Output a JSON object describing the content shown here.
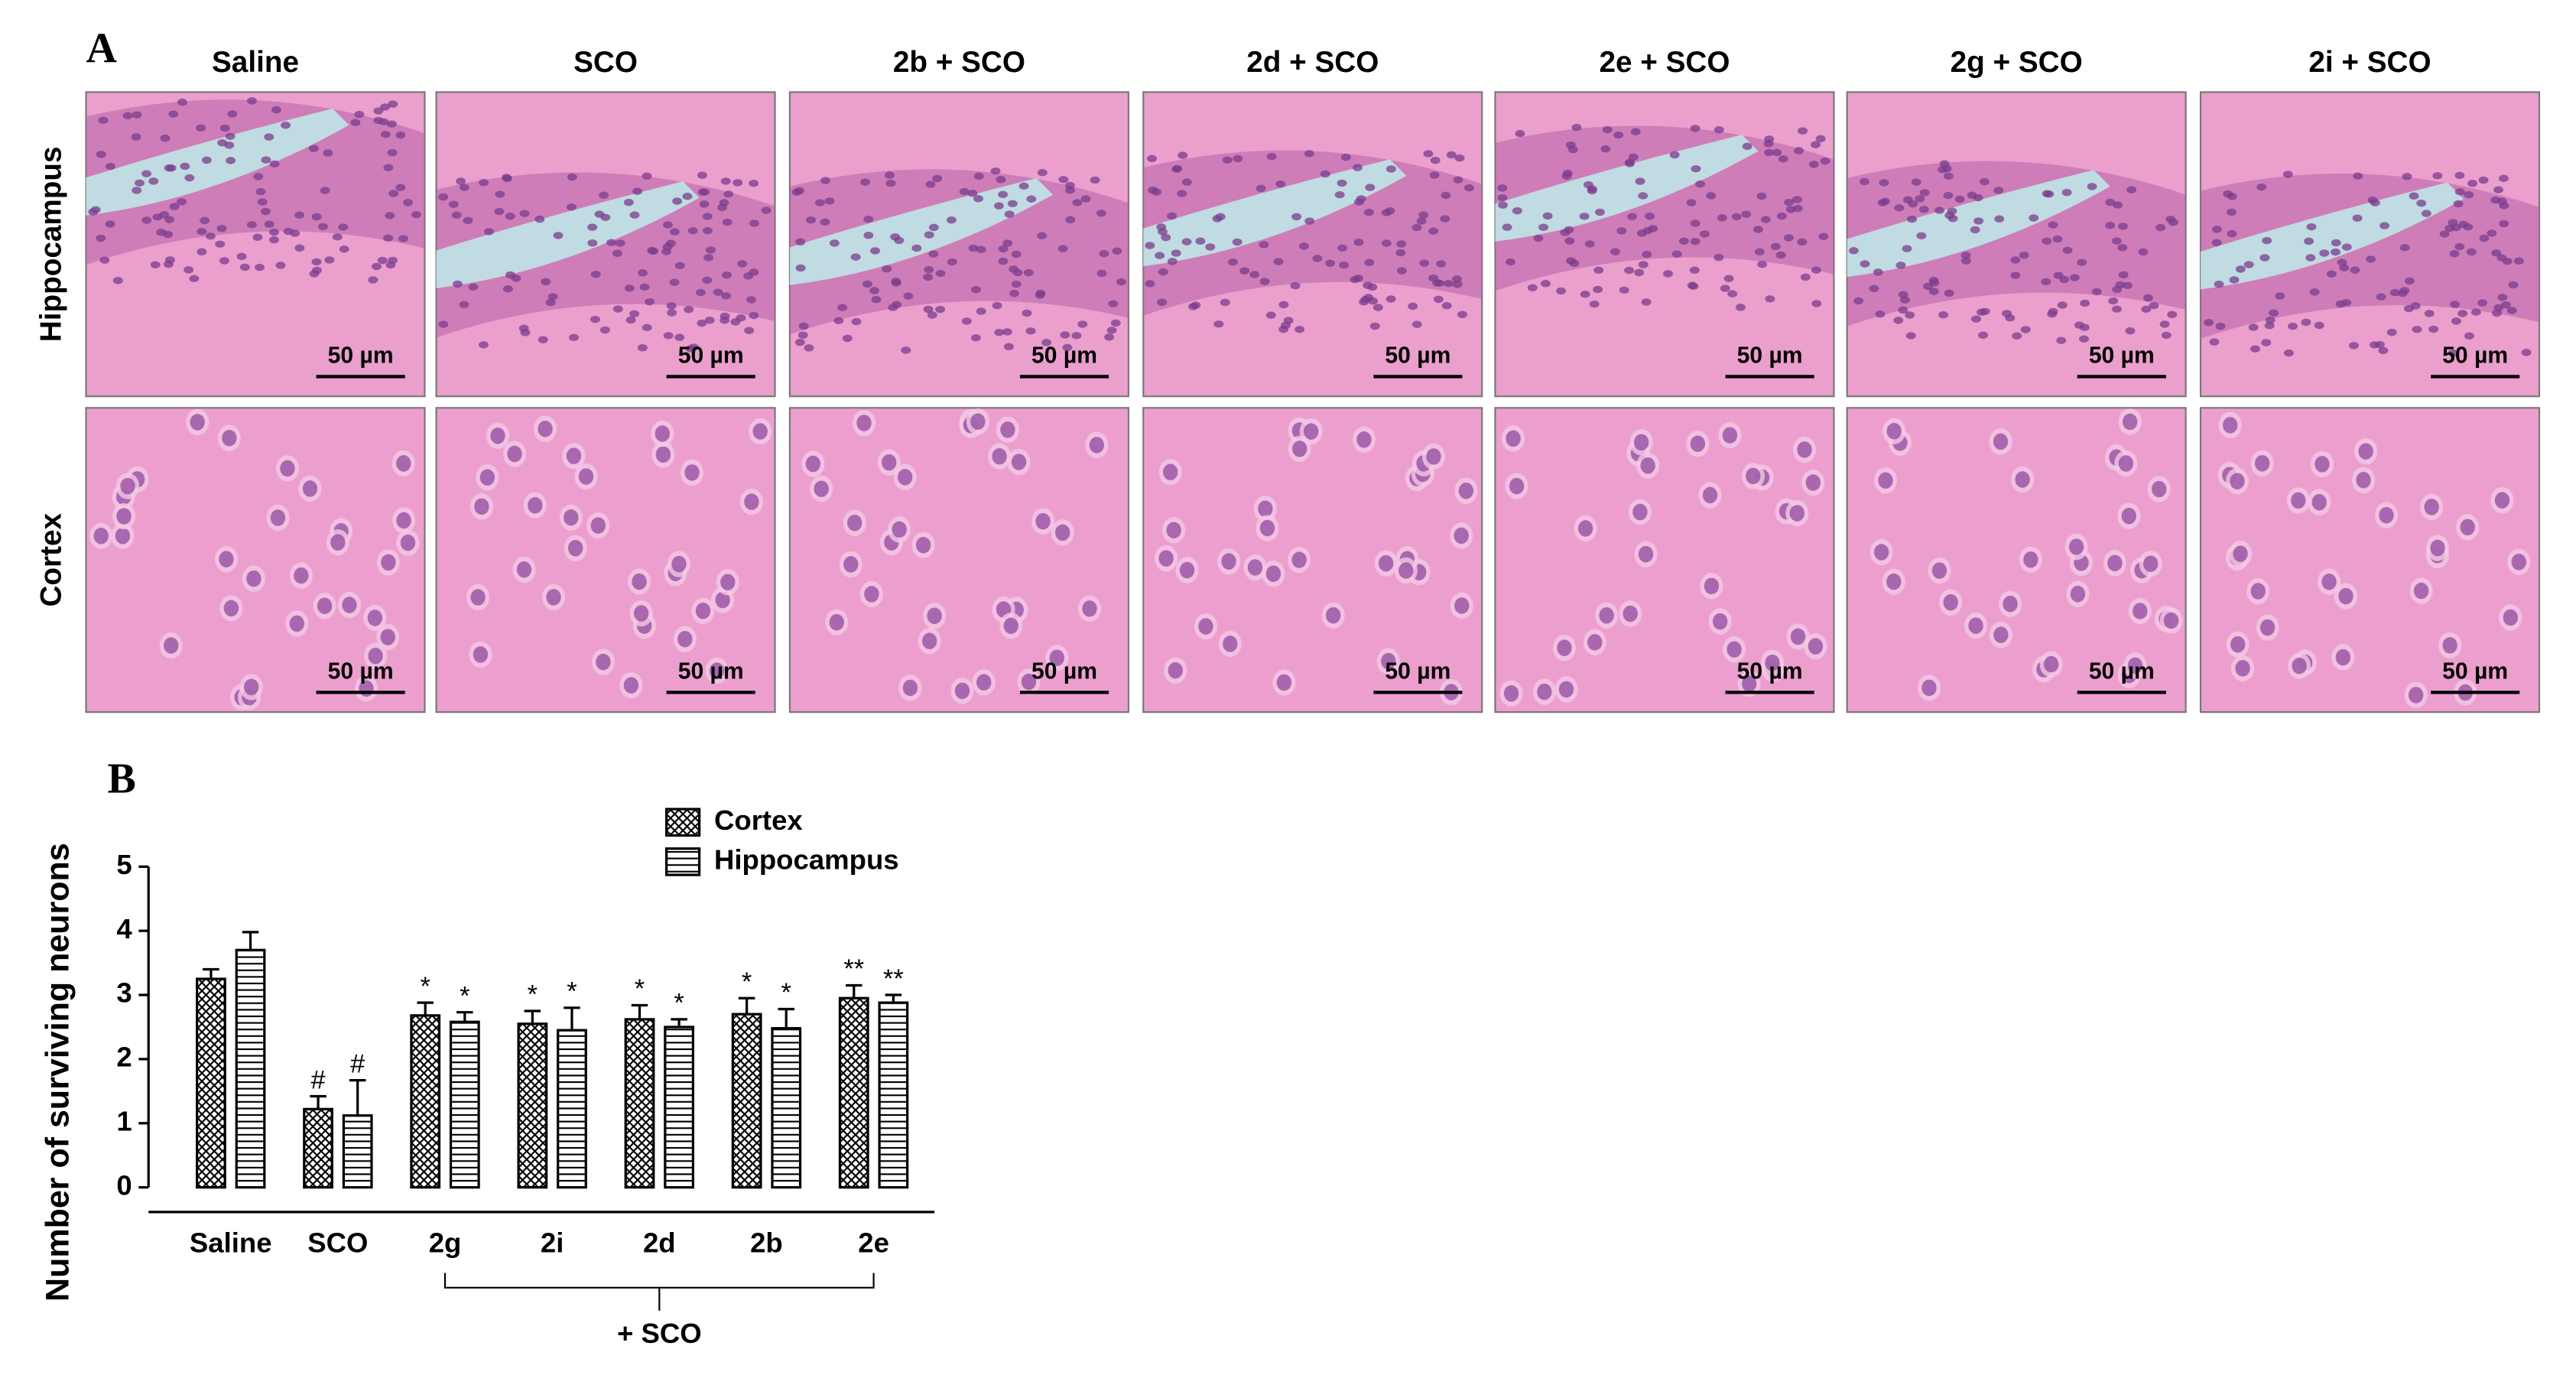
{
  "panel_a": {
    "label": "A",
    "columns": [
      "Saline",
      "SCO",
      "2b + SCO",
      "2d + SCO",
      "2e + SCO",
      "2g + SCO",
      "2i + SCO"
    ],
    "rows": [
      "Hippocampus",
      "Cortex"
    ],
    "scale_bar": "50 µm"
  },
  "chart_data": {
    "type": "bar",
    "panel_label": "B",
    "y_label": "Number of surviving neurons",
    "categories": [
      "Saline",
      "SCO",
      "2g",
      "2i",
      "2d",
      "2b",
      "2e"
    ],
    "group_label": "+ SCO",
    "series": [
      {
        "name": "Cortex",
        "color": "#000000",
        "pattern": "crosshatch",
        "values": [
          3.25,
          1.22,
          2.68,
          2.55,
          2.62,
          2.7,
          2.95
        ],
        "errors": [
          0.15,
          0.2,
          0.2,
          0.2,
          0.22,
          0.25,
          0.2
        ],
        "annotations": [
          null,
          "#",
          "*",
          "*",
          "*",
          "*",
          "**"
        ]
      },
      {
        "name": "Hippocampus",
        "color": "#000000",
        "pattern": "horizontal",
        "values": [
          3.7,
          1.12,
          2.58,
          2.45,
          2.5,
          2.48,
          2.88
        ],
        "errors": [
          0.28,
          0.55,
          0.15,
          0.35,
          0.12,
          0.3,
          0.12
        ],
        "annotations": [
          null,
          "#",
          "*",
          "*",
          "*",
          "*",
          "**"
        ]
      }
    ],
    "ylim": [
      0,
      5
    ],
    "yticks": [
      0,
      1,
      2,
      3,
      4,
      5
    ],
    "grid": false,
    "legend": "top"
  }
}
